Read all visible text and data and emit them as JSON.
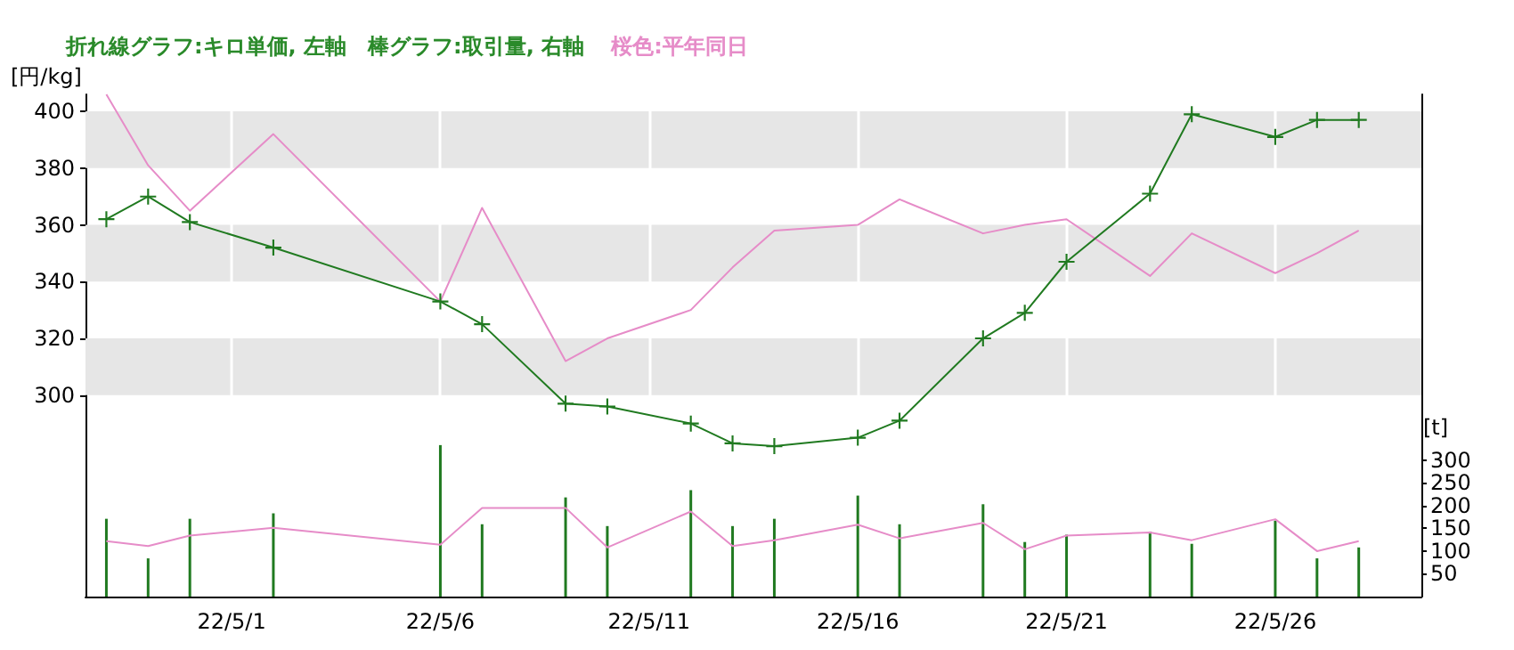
{
  "chart_data": {
    "type": "line",
    "title": "折れ線グラフ:キロ単価, 左軸　棒グラフ:取引量, 右軸",
    "subtitle": "桜色:平年同日",
    "ylabel": "[円/kg]",
    "y2label": "[t]",
    "x": [
      "--04-28",
      "--04-29",
      "--04-30",
      "--05-02",
      "--05-06",
      "--05-07",
      "--05-09",
      "--05-10",
      "--05-12",
      "--05-13",
      "--05-14",
      "--05-16",
      "--05-17",
      "--05-19",
      "--05-20",
      "--05-21",
      "--05-23",
      "--05-24",
      "--05-26",
      "--05-27",
      "--05-28"
    ],
    "series": [
      {
        "type": "bar",
        "axis": "y2",
        "color": "#207a20",
        "values": [
          171,
          84,
          171,
          183,
          333,
          159,
          218,
          155,
          234,
          155,
          171,
          222,
          159,
          203,
          120,
          136,
          143,
          116,
          167,
          84,
          108
        ]
      },
      {
        "axis": "y2",
        "color": "#e68cc8",
        "marker": "none",
        "values": [
          122,
          111,
          134,
          151,
          114,
          195,
          195,
          108,
          187,
          111,
          124,
          158,
          128,
          162,
          104,
          134,
          141,
          124,
          170,
          100,
          122
        ]
      },
      {
        "color": "#e68cc8",
        "marker": "none",
        "values": [
          406,
          381,
          365,
          392,
          333,
          366,
          312,
          320,
          330,
          345,
          358,
          360,
          369,
          357,
          360,
          362,
          342,
          357,
          343,
          350,
          358
        ]
      },
      {
        "color": "#207a20",
        "marker": "cross",
        "values": [
          362,
          370,
          361,
          352,
          333,
          325,
          297,
          296,
          290,
          283,
          282,
          285,
          291,
          320,
          329,
          347,
          371,
          399,
          391,
          397,
          397
        ]
      }
    ],
    "xlim": [
      "--04-27T12:00",
      "--05-29T12:00"
    ],
    "xticks": [
      {
        "value": "--05-01",
        "label": "22/5/1"
      },
      {
        "value": "--05-06",
        "label": "22/5/6"
      },
      {
        "value": "--05-11",
        "label": "22/5/11"
      },
      {
        "value": "--05-16",
        "label": "22/5/16"
      },
      {
        "value": "--05-21",
        "label": "22/5/21"
      },
      {
        "value": "--05-26",
        "label": "22/5/26"
      }
    ],
    "ylim": [
      229,
      406
    ],
    "yticks": [
      300,
      320,
      340,
      360,
      380,
      400
    ],
    "y2lim": [
      0,
      1104
    ],
    "y2ticks": [
      50,
      100,
      150,
      200,
      250,
      300
    ],
    "bands": [
      {
        "axis": "y",
        "from": 300,
        "to": 320,
        "color": "#e6e6e6"
      },
      {
        "axis": "y",
        "from": 340,
        "to": 360,
        "color": "#e6e6e6"
      },
      {
        "axis": "y",
        "from": 380,
        "to": 400,
        "color": "#e6e6e6"
      }
    ],
    "grid": "x"
  }
}
